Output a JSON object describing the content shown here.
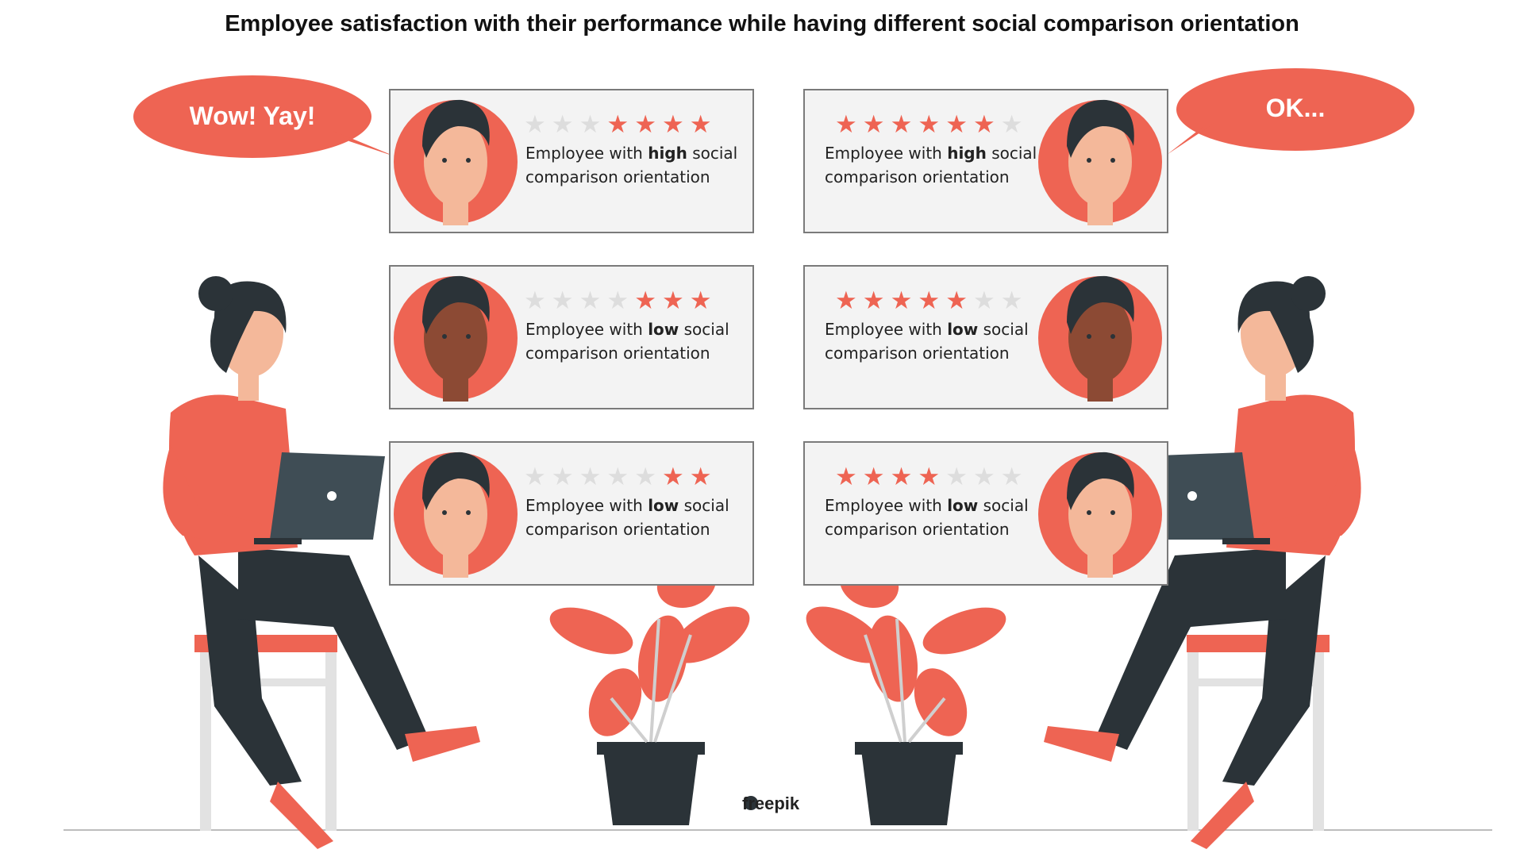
{
  "title": "Employee satisfaction with their performance while having different social comparison orientation",
  "bubbles": {
    "left": "Wow! Yay!",
    "right": "OK..."
  },
  "colors": {
    "accent": "#ee6453",
    "dark": "#2b3338",
    "star_off": "#dddddd",
    "card_bg": "#f3f3f3"
  },
  "cards": [
    {
      "side": "left",
      "row": 1,
      "rating": 4,
      "label_pre": "Employee with ",
      "label_bold": "high",
      "label_post": " social comparison orientation"
    },
    {
      "side": "left",
      "row": 2,
      "rating": 3,
      "label_pre": "Employee with ",
      "label_bold": "low",
      "label_post": " social comparison orientation"
    },
    {
      "side": "left",
      "row": 3,
      "rating": 2,
      "label_pre": "Employee with ",
      "label_bold": "low",
      "label_post": " social comparison orientation"
    },
    {
      "side": "right",
      "row": 1,
      "rating": 6,
      "label_pre": "Employee with ",
      "label_bold": "high",
      "label_post": " social comparison orientation"
    },
    {
      "side": "right",
      "row": 2,
      "rating": 5,
      "label_pre": "Employee with ",
      "label_bold": "low",
      "label_post": " social comparison orientation"
    },
    {
      "side": "right",
      "row": 3,
      "rating": 4,
      "label_pre": "Employee with ",
      "label_bold": "low",
      "label_post": " social comparison orientation"
    }
  ],
  "max_stars": 7,
  "logo": "freepik"
}
